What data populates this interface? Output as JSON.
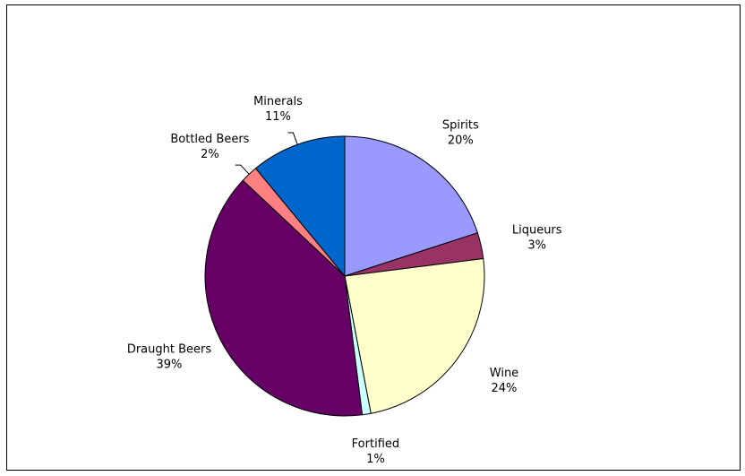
{
  "chart_data": {
    "type": "pie",
    "categories": [
      "Spirits",
      "Liqueurs",
      "Wine",
      "Fortified",
      "Draught Beers",
      "Bottled Beers",
      "Minerals"
    ],
    "values": [
      20,
      3,
      24,
      1,
      39,
      2,
      11
    ],
    "value_labels": [
      "20%",
      "3%",
      "24%",
      "1%",
      "39%",
      "2%",
      "11%"
    ],
    "colors": [
      "#9999ff",
      "#993366",
      "#ffffcc",
      "#ccffff",
      "#660066",
      "#ff8080",
      "#0066cc"
    ]
  }
}
